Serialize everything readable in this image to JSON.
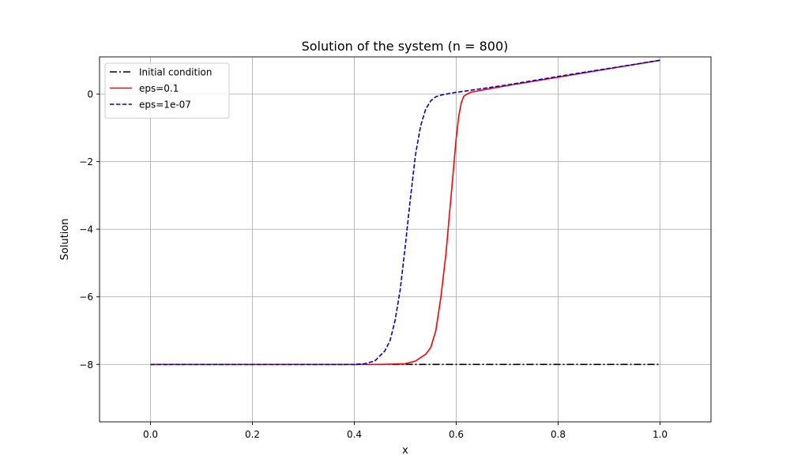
{
  "chart_data": {
    "type": "line",
    "title": "Solution of the system (n = 800)",
    "xlabel": "x",
    "ylabel": "Solution",
    "xlim": [
      -0.1,
      1.1
    ],
    "ylim": [
      -9.7,
      1.1
    ],
    "xticks": [
      0.0,
      0.2,
      0.4,
      0.6,
      0.8,
      1.0
    ],
    "xtick_labels": [
      "0.0",
      "0.2",
      "0.4",
      "0.6",
      "0.8",
      "1.0"
    ],
    "yticks": [
      0,
      -2,
      -4,
      -6,
      -8
    ],
    "ytick_labels": [
      "0",
      "−2",
      "−4",
      "−6",
      "−8"
    ],
    "grid": true,
    "legend_position": "top-left",
    "series": [
      {
        "name": "Initial condition",
        "color": "#000000",
        "style": "dashdot",
        "x": [
          0.0,
          1.0
        ],
        "y": [
          -8.0,
          -8.0
        ]
      },
      {
        "name": "eps=0.1",
        "color": "#ff0000",
        "style": "solid",
        "x": [
          0.0,
          0.45,
          0.5,
          0.52,
          0.54,
          0.55,
          0.56,
          0.57,
          0.58,
          0.59,
          0.6,
          0.605,
          0.61,
          0.615,
          0.62,
          0.63,
          0.7,
          0.8,
          0.9,
          1.0
        ],
        "y": [
          -8.0,
          -8.0,
          -7.98,
          -7.9,
          -7.7,
          -7.5,
          -7.0,
          -6.0,
          -4.7,
          -3.0,
          -1.3,
          -0.65,
          -0.25,
          -0.06,
          -0.01,
          0.06,
          0.25,
          0.5,
          0.75,
          1.0
        ]
      },
      {
        "name": "eps=1e-07",
        "color": "#0000cc",
        "style": "dashed",
        "x": [
          0.0,
          0.4,
          0.42,
          0.44,
          0.46,
          0.47,
          0.48,
          0.49,
          0.5,
          0.51,
          0.52,
          0.53,
          0.54,
          0.55,
          0.56,
          0.57,
          0.58,
          0.6,
          0.7,
          0.8,
          0.9,
          1.0
        ],
        "y": [
          -8.0,
          -8.0,
          -7.98,
          -7.9,
          -7.6,
          -7.3,
          -6.7,
          -5.8,
          -4.5,
          -3.1,
          -1.8,
          -0.95,
          -0.45,
          -0.2,
          -0.08,
          -0.03,
          0.0,
          0.05,
          0.27,
          0.52,
          0.76,
          1.0
        ]
      }
    ]
  }
}
